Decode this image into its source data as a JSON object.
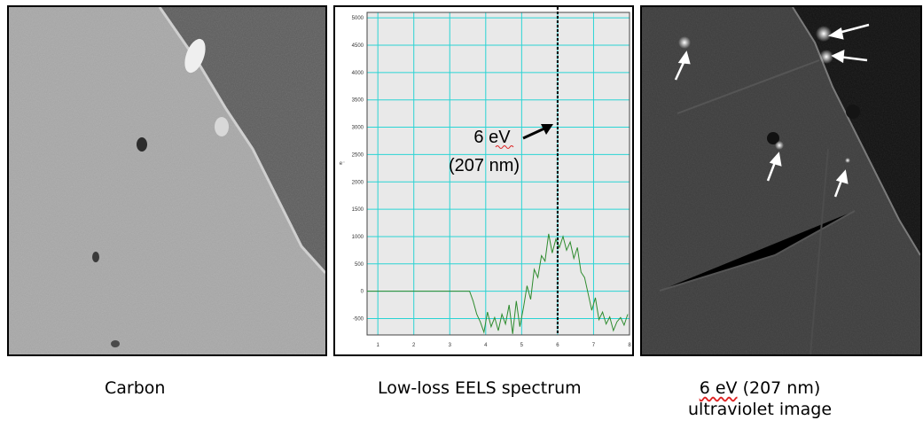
{
  "panels": {
    "left": {
      "caption": "Carbon"
    },
    "middle": {
      "caption": "Low-loss EELS spectrum"
    },
    "right": {
      "caption_ev": "6 eV",
      "caption_nm": " (207 nm)",
      "caption_line2": "ultraviolet image"
    }
  },
  "chart_data": {
    "type": "line",
    "title": "",
    "xlabel": "",
    "ylabel": "e⁻",
    "xlim": [
      0.7,
      8.0
    ],
    "ylim": [
      -800,
      5100
    ],
    "x_ticks": [
      "1",
      "2",
      "3",
      "4",
      "5",
      "6",
      "7",
      "8"
    ],
    "y_ticks": [
      "5000",
      "4500",
      "4000",
      "3500",
      "3000",
      "2500",
      "2000",
      "1500",
      "1000",
      "500",
      "0",
      "-500"
    ],
    "grid": true,
    "marker_line_x": 6,
    "annotation": {
      "line1": "6 eV",
      "line2": "(207 nm)"
    },
    "series": [
      {
        "color": "#2e8b2e",
        "x": [
          0.7,
          3.55,
          3.65,
          3.75,
          3.85,
          3.95,
          4.05,
          4.15,
          4.25,
          4.35,
          4.45,
          4.55,
          4.65,
          4.75,
          4.85,
          4.95,
          5.05,
          5.15,
          5.25,
          5.35,
          5.45,
          5.55,
          5.65,
          5.75,
          5.85,
          5.95,
          6.05,
          6.15,
          6.25,
          6.35,
          6.45,
          6.55,
          6.65,
          6.75,
          6.85,
          6.95,
          7.05,
          7.15,
          7.25,
          7.35,
          7.45,
          7.55,
          7.65,
          7.75,
          7.85,
          7.95
        ],
        "y": [
          0,
          0,
          -180,
          -420,
          -560,
          -750,
          -380,
          -650,
          -480,
          -720,
          -420,
          -600,
          -250,
          -780,
          -180,
          -650,
          -300,
          100,
          -150,
          400,
          250,
          650,
          550,
          1050,
          700,
          950,
          800,
          1000,
          750,
          900,
          600,
          800,
          350,
          250,
          -50,
          -350,
          -120,
          -520,
          -380,
          -600,
          -470,
          -720,
          -560,
          -480,
          -620,
          -420
        ]
      }
    ]
  }
}
